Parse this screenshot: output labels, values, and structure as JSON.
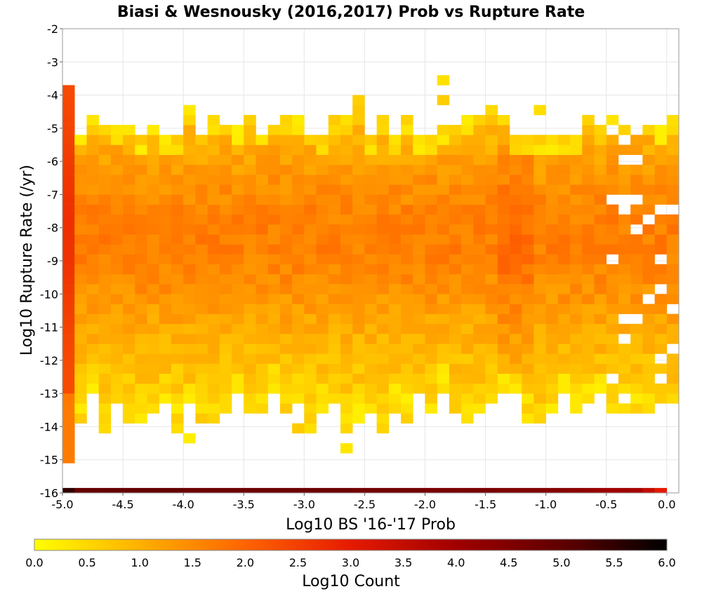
{
  "chart_data": {
    "type": "heatmap",
    "title": "Biasi & Wesnousky (2016,2017) Prob vs Rupture Rate",
    "xlabel": "Log10 BS '16-'17 Prob",
    "ylabel": "Log10 Rupture Rate (/yr)",
    "xlim": [
      -5.0,
      0.1
    ],
    "ylim": [
      -16,
      -2
    ],
    "xticks": [
      -5.0,
      -4.5,
      -4.0,
      -3.5,
      -3.0,
      -2.5,
      -2.0,
      -1.5,
      -1.0,
      -0.5,
      0.0
    ],
    "xtick_labels": [
      "-5.0",
      "-4.5",
      "-4.0",
      "-3.5",
      "-3.0",
      "-2.5",
      "-2.0",
      "-1.5",
      "-1.0",
      "-0.5",
      "0.0"
    ],
    "yticks": [
      -2,
      -3,
      -4,
      -5,
      -6,
      -7,
      -8,
      -9,
      -10,
      -11,
      -12,
      -13,
      -14,
      -15,
      -16
    ],
    "ytick_labels": [
      "-2",
      "-3",
      "-4",
      "-5",
      "-6",
      "-7",
      "-8",
      "-9",
      "-10",
      "-11",
      "-12",
      "-13",
      "-14",
      "-15",
      "-16"
    ],
    "bin_width_x": 0.1,
    "bin_height_y": 0.3,
    "grid": true,
    "colorbar": {
      "label": "Log10 Count",
      "min": 0.0,
      "max": 6.0,
      "ticks": [
        "0.0",
        "0.5",
        "1.0",
        "1.5",
        "2.0",
        "2.5",
        "3.0",
        "3.5",
        "4.0",
        "4.5",
        "5.0",
        "5.5",
        "6.0"
      ],
      "placement": "bottom",
      "colors": [
        "#ffff00",
        "#ffb000",
        "#ff6400",
        "#e61a00",
        "#a00000",
        "#600000",
        "#000000"
      ]
    },
    "bottom_row": {
      "y": -16,
      "note_values_log10_count": [
        5.5,
        4.9,
        4.9,
        4.9,
        4.9,
        4.9,
        4.9,
        4.9,
        4.9,
        4.9,
        4.8,
        4.8,
        4.8,
        4.8,
        4.8,
        4.8,
        4.8,
        4.8,
        4.8,
        4.8,
        4.8,
        4.8,
        4.8,
        4.8,
        4.7,
        4.7,
        4.7,
        4.7,
        4.7,
        4.7,
        4.6,
        4.6,
        4.6,
        4.6,
        4.6,
        4.6,
        4.5,
        4.5,
        4.5,
        4.5,
        4.4,
        4.4,
        4.3,
        4.2,
        4.1,
        4.0,
        4.0,
        3.9,
        3.5,
        3.0,
        2.6,
        2.8
      ]
    }
  }
}
